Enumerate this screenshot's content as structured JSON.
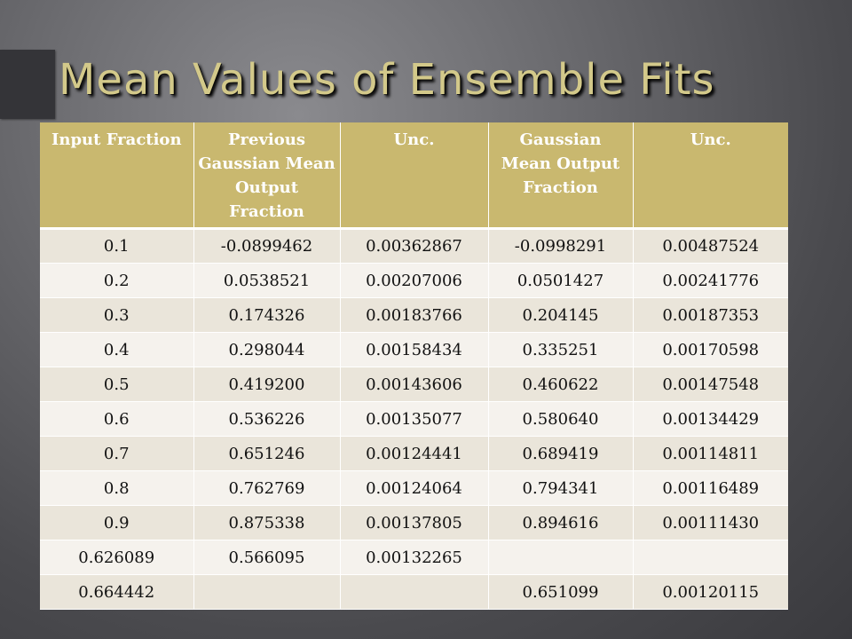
{
  "slide": {
    "title": "Mean Values of Ensemble Fits"
  },
  "table": {
    "headers": [
      "Input Fraction",
      "Previous Gaussian Mean Output Fraction",
      "Unc.",
      "Gaussian Mean Output Fraction",
      "Unc."
    ],
    "rows": [
      [
        "0.1",
        "-0.0899462",
        "0.00362867",
        "-0.0998291",
        "0.00487524"
      ],
      [
        "0.2",
        "0.0538521",
        "0.00207006",
        "0.0501427",
        "0.00241776"
      ],
      [
        "0.3",
        "0.174326",
        "0.00183766",
        "0.204145",
        "0.00187353"
      ],
      [
        "0.4",
        "0.298044",
        "0.00158434",
        "0.335251",
        "0.00170598"
      ],
      [
        "0.5",
        "0.419200",
        "0.00143606",
        "0.460622",
        "0.00147548"
      ],
      [
        "0.6",
        "0.536226",
        "0.00135077",
        "0.580640",
        "0.00134429"
      ],
      [
        "0.7",
        "0.651246",
        "0.00124441",
        "0.689419",
        "0.00114811"
      ],
      [
        "0.8",
        "0.762769",
        "0.00124064",
        "0.794341",
        "0.00116489"
      ],
      [
        "0.9",
        "0.875338",
        "0.00137805",
        "0.894616",
        "0.00111430"
      ],
      [
        "0.626089",
        "0.566095",
        "0.00132265",
        "",
        ""
      ],
      [
        "0.664442",
        "",
        "",
        "0.651099",
        "0.00120115"
      ]
    ]
  },
  "colors": {
    "header_bg": "#c9b86f",
    "title_text": "#d3c98a",
    "row_odd": "#eae5da",
    "row_even": "#f5f2ed"
  }
}
